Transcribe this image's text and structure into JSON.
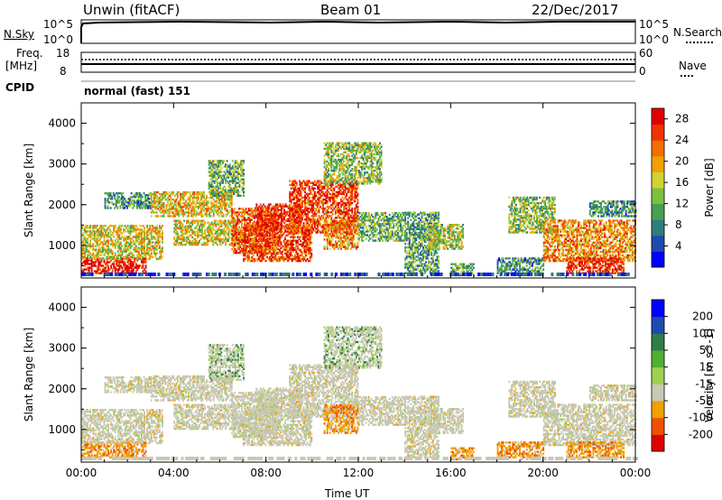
{
  "header": {
    "station": "Unwin (fitACF)",
    "beam": "Beam 01",
    "date": "22/Dec/2017"
  },
  "strip_nsky": {
    "left_label": "N.Sky",
    "right_label": "N.Search",
    "ticks": [
      "10^5",
      "10^0"
    ],
    "right_ticks": [
      "10^5",
      "10^0"
    ]
  },
  "strip_freq": {
    "left_label_1": "Freq.",
    "left_label_2": "[MHz]",
    "left_ticks": [
      "18",
      "8"
    ],
    "right_label": "Nave",
    "right_ticks": [
      "60",
      "0"
    ]
  },
  "cpid": {
    "label": "CPID",
    "value": "normal (fast) 151"
  },
  "colors": {
    "power": [
      "#0000ff",
      "#1e4bb0",
      "#2e7d7d",
      "#46a050",
      "#7cc040",
      "#d2d232",
      "#f0a000",
      "#f07000",
      "#f03200",
      "#e00000"
    ],
    "velocity": [
      "#e00000",
      "#f05000",
      "#f0a000",
      "#c8c8b4",
      "#a0d050",
      "#50b030",
      "#2e7d4a",
      "#1e4bb0",
      "#0000ff"
    ]
  },
  "chart_data": [
    {
      "type": "heatmap",
      "name": "power-panel",
      "ylabel": "Slant Range [km]",
      "xlabel": "Time UT",
      "x_ticks": [
        "00:00",
        "04:00",
        "08:00",
        "12:00",
        "16:00",
        "20:00",
        "00:00"
      ],
      "xlim_hours": [
        0,
        24
      ],
      "ylim_km": [
        200,
        4500
      ],
      "y_ticks": [
        1000,
        2000,
        3000,
        4000
      ],
      "colorbar_label": "Power [dB]",
      "colorbar_ticks": [
        4,
        8,
        12,
        16,
        20,
        24,
        28
      ],
      "colorbar_range": [
        0,
        30
      ]
    },
    {
      "type": "heatmap",
      "name": "velocity-panel",
      "ylabel": "Slant Range [km]",
      "xlabel": "Time UT",
      "x_ticks": [
        "00:00",
        "04:00",
        "08:00",
        "12:00",
        "16:00",
        "20:00",
        "00:00"
      ],
      "xlim_hours": [
        0,
        24
      ],
      "ylim_km": [
        200,
        4500
      ],
      "y_ticks": [
        1000,
        2000,
        3000,
        4000
      ],
      "colorbar_label": "Velocity [m s^-1]",
      "colorbar_ticks": [
        "200",
        "100",
        "50",
        "15",
        "-15",
        "-50",
        "-100",
        "-200"
      ]
    }
  ],
  "xaxis_title": "Time UT"
}
